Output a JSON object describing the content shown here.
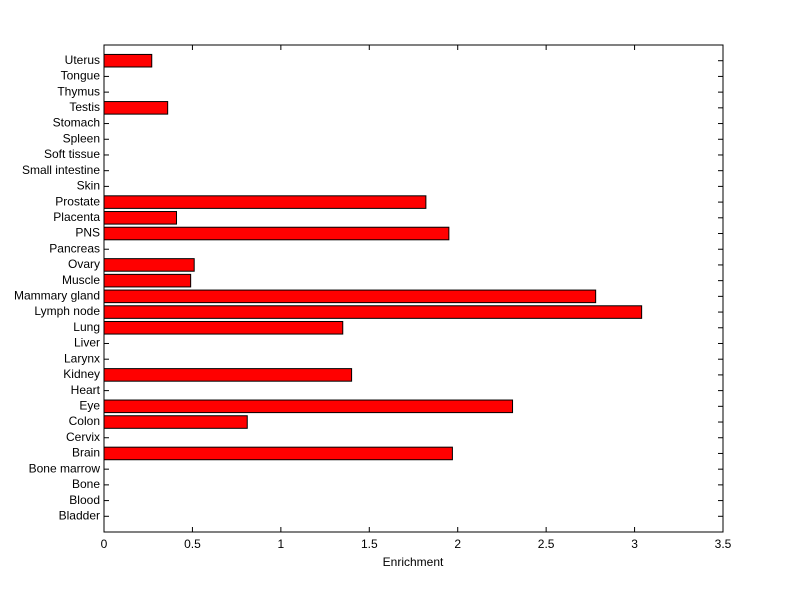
{
  "chart_data": {
    "type": "barh",
    "xlabel": "Enrichment",
    "categories": [
      "Bladder",
      "Blood",
      "Bone",
      "Bone marrow",
      "Brain",
      "Cervix",
      "Colon",
      "Eye",
      "Heart",
      "Kidney",
      "Larynx",
      "Liver",
      "Lung",
      "Lymph node",
      "Mammary gland",
      "Muscle",
      "Ovary",
      "Pancreas",
      "PNS",
      "Placenta",
      "Prostate",
      "Skin",
      "Small intestine",
      "Soft tissue",
      "Spleen",
      "Stomach",
      "Testis",
      "Thymus",
      "Tongue",
      "Uterus"
    ],
    "values": [
      0,
      0,
      0,
      0,
      1.97,
      0,
      0.81,
      2.31,
      0,
      1.4,
      0,
      0,
      1.35,
      3.04,
      2.78,
      0.49,
      0.51,
      0,
      1.95,
      0.41,
      1.82,
      0,
      0,
      0,
      0,
      0,
      0.36,
      0,
      0,
      0.27
    ],
    "color": "#ff0000",
    "xlim": [
      0,
      3.5
    ],
    "xticks": [
      0,
      0.5,
      1,
      1.5,
      2,
      2.5,
      3,
      3.5
    ]
  }
}
